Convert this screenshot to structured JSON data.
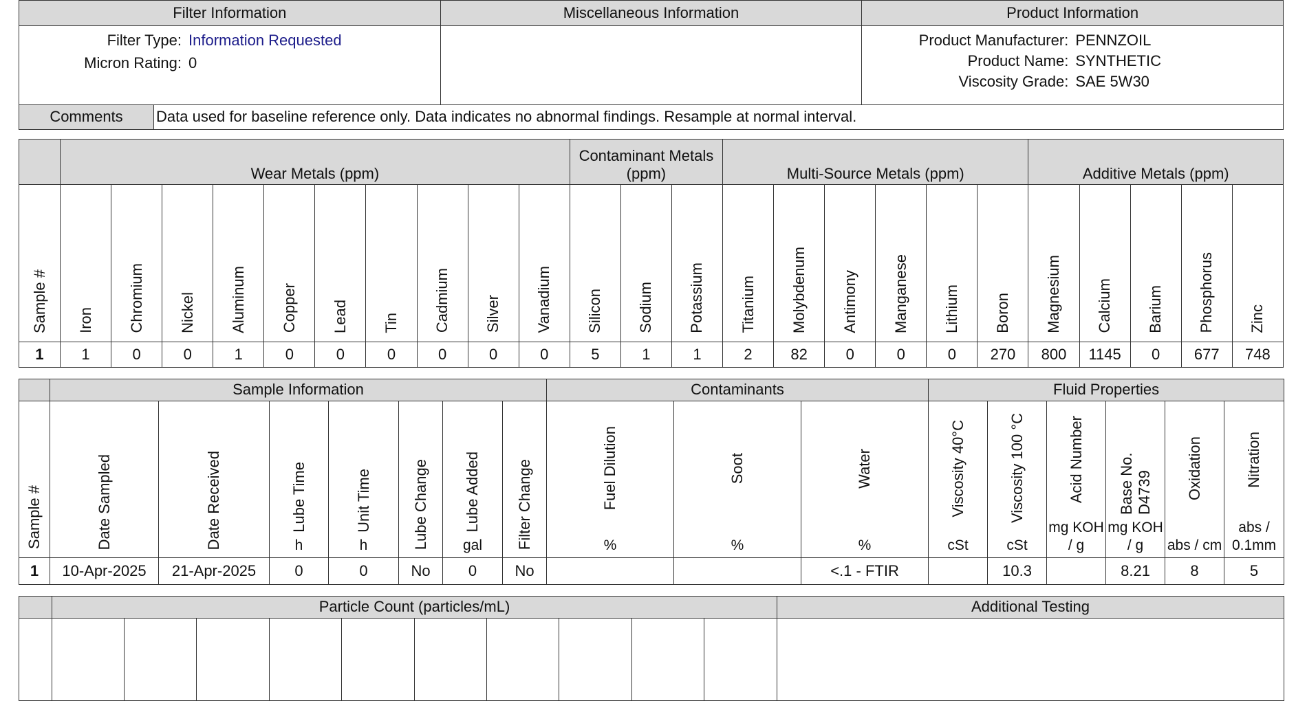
{
  "filter_info": {
    "title": "Filter Information",
    "rows": [
      {
        "label": "Filter Type:",
        "value": "Information Requested"
      },
      {
        "label": "Micron Rating:",
        "value": "0"
      }
    ]
  },
  "misc_info": {
    "title": "Miscellaneous Information"
  },
  "product_info": {
    "title": "Product Information",
    "rows": [
      {
        "label": "Product Manufacturer:",
        "value": "PENNZOIL"
      },
      {
        "label": "Product Name:",
        "value": "SYNTHETIC"
      },
      {
        "label": "Viscosity Grade:",
        "value": "SAE 5W30"
      }
    ]
  },
  "comments": {
    "label": "Comments",
    "text": "Data used for baseline reference only. Data indicates no abnormal findings. Resample at normal interval."
  },
  "metals": {
    "sample_header": "Sample #",
    "groups": [
      {
        "title": "Wear Metals (ppm)",
        "columns": [
          "Iron",
          "Chromium",
          "Nickel",
          "Aluminum",
          "Copper",
          "Lead",
          "Tin",
          "Cadmium",
          "Silver",
          "Vanadium"
        ]
      },
      {
        "title": "Contaminant Metals (ppm)",
        "columns": [
          "Silicon",
          "Sodium",
          "Potassium"
        ]
      },
      {
        "title": "Multi-Source Metals (ppm)",
        "columns": [
          "Titanium",
          "Molybdenum",
          "Antimony",
          "Manganese",
          "Lithium",
          "Boron"
        ]
      },
      {
        "title": "Additive Metals (ppm)",
        "columns": [
          "Magnesium",
          "Calcium",
          "Barium",
          "Phosphorus",
          "Zinc"
        ]
      }
    ],
    "rows": [
      {
        "sample": "1",
        "values": [
          1,
          0,
          0,
          1,
          0,
          0,
          0,
          0,
          0,
          0,
          5,
          1,
          1,
          2,
          82,
          0,
          0,
          0,
          270,
          800,
          1145,
          0,
          677,
          748
        ]
      }
    ]
  },
  "samples": {
    "sample_header": "Sample #",
    "groups": [
      {
        "title": "Sample Information",
        "columns": [
          {
            "name": "Date Sampled"
          },
          {
            "name": "Date  Received"
          },
          {
            "name": "Lube Time",
            "unit": "h"
          },
          {
            "name": "Unit Time",
            "unit": "h"
          },
          {
            "name": "Lube Change"
          },
          {
            "name": "Lube Added",
            "unit": "gal"
          },
          {
            "name": "Filter Change"
          }
        ]
      },
      {
        "title": "Contaminants",
        "columns": [
          {
            "name": "Fuel Dilution",
            "unit": "%"
          },
          {
            "name": "Soot",
            "unit": "%"
          },
          {
            "name": "Water",
            "unit": "%"
          }
        ]
      },
      {
        "title": "Fluid Properties",
        "columns": [
          {
            "name": "Viscosity 40°C",
            "unit": "cSt"
          },
          {
            "name": "Viscosity 100 °C",
            "unit": "cSt"
          },
          {
            "name": "Acid Number",
            "unit": "mg KOH / g"
          },
          {
            "name": "Base No. D4739",
            "unit": "mg KOH / g"
          },
          {
            "name": "Oxidation",
            "unit": "abs / cm"
          },
          {
            "name": "Nitration",
            "unit": "abs / 0.1mm"
          }
        ]
      }
    ],
    "rows": [
      {
        "sample": "1",
        "values": [
          "10-Apr-2025",
          "21-Apr-2025",
          "0",
          "0",
          "No",
          "0",
          "No",
          null,
          null,
          "<.1 - FTIR",
          null,
          "10.3",
          null,
          "8.21",
          "8",
          "5"
        ]
      }
    ]
  },
  "particles": {
    "groups": [
      {
        "title": "Particle Count (particles/mL)"
      },
      {
        "title": "Additional Testing"
      }
    ]
  }
}
